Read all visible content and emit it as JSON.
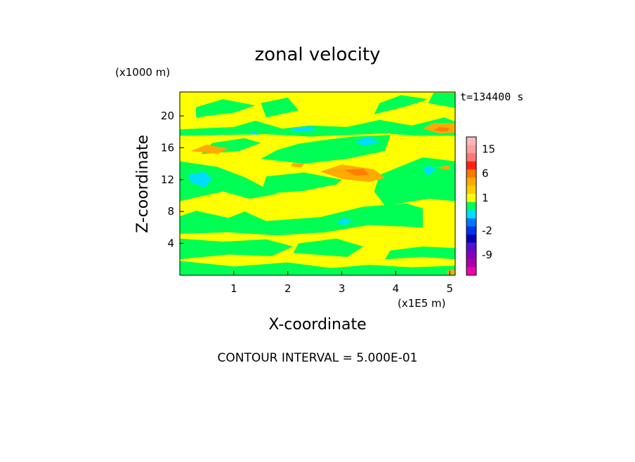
{
  "chart_data": {
    "type": "heatmap",
    "title": "zonal velocity",
    "xlabel": "X-coordinate",
    "ylabel": "Z-coordinate",
    "x_unit": "(x1E5 m)",
    "y_unit": "(x1000 m)",
    "time_label": "t=134400 s",
    "footer": "CONTOUR INTERVAL = 5.000E-01",
    "xlim": [
      0,
      5.1
    ],
    "ylim": [
      0,
      23
    ],
    "x_ticks": [
      {
        "value": 1,
        "label": "1"
      },
      {
        "value": 2,
        "label": "2"
      },
      {
        "value": 3,
        "label": "3"
      },
      {
        "value": 4,
        "label": "4"
      },
      {
        "value": 5,
        "label": "5"
      }
    ],
    "y_ticks": [
      {
        "value": 4,
        "label": "4"
      },
      {
        "value": 8,
        "label": "8"
      },
      {
        "value": 12,
        "label": "12"
      },
      {
        "value": 16,
        "label": "16"
      },
      {
        "value": 20,
        "label": "20"
      }
    ],
    "background_level": {
      "name": "near-zero positive",
      "color": "#ffff00"
    },
    "regions": [
      {
        "level": "weak",
        "color": "#00ff55",
        "points": [
          [
            0,
            0
          ],
          [
            5.1,
            0
          ],
          [
            5.1,
            1.2
          ],
          [
            4.3,
            1.0
          ],
          [
            3.5,
            1.3
          ],
          [
            2.8,
            0.9
          ],
          [
            2.0,
            1.6
          ],
          [
            1.0,
            1.1
          ],
          [
            0,
            1.8
          ]
        ]
      },
      {
        "level": "weak",
        "color": "#00ff55",
        "points": [
          [
            0,
            2.0
          ],
          [
            0.9,
            2.6
          ],
          [
            1.7,
            2.4
          ],
          [
            2.1,
            3.6
          ],
          [
            1.6,
            4.5
          ],
          [
            0.8,
            4.2
          ],
          [
            0,
            4.6
          ]
        ]
      },
      {
        "level": "weak",
        "color": "#00ff55",
        "points": [
          [
            2.1,
            2.8
          ],
          [
            3.1,
            2.3
          ],
          [
            3.4,
            3.6
          ],
          [
            2.9,
            4.6
          ],
          [
            2.2,
            4.0
          ]
        ]
      },
      {
        "level": "weak",
        "color": "#00ff55",
        "points": [
          [
            1.8,
            5.0
          ],
          [
            2.7,
            5.4
          ],
          [
            3.5,
            6.3
          ],
          [
            4.5,
            6.0
          ],
          [
            4.5,
            8.4
          ],
          [
            4.2,
            9.0
          ],
          [
            3.4,
            8.6
          ],
          [
            2.6,
            7.3
          ],
          [
            1.6,
            6.8
          ],
          [
            1.2,
            8.0
          ],
          [
            0.9,
            7.2
          ],
          [
            0.3,
            8.1
          ],
          [
            0,
            7.4
          ],
          [
            0,
            5.2
          ],
          [
            0.9,
            5.4
          ]
        ]
      },
      {
        "level": "weak",
        "color": "#00ff55",
        "points": [
          [
            3.8,
            2.0
          ],
          [
            4.5,
            2.3
          ],
          [
            5.1,
            2.0
          ],
          [
            5.1,
            3.4
          ],
          [
            4.5,
            3.6
          ],
          [
            3.9,
            3.1
          ]
        ]
      },
      {
        "level": "weak",
        "color": "#00ff55",
        "points": [
          [
            3.8,
            8.7
          ],
          [
            4.6,
            9.6
          ],
          [
            5.1,
            9.3
          ],
          [
            5.1,
            14.3
          ],
          [
            4.5,
            14.8
          ],
          [
            3.7,
            12.6
          ],
          [
            3.6,
            10.5
          ]
        ]
      },
      {
        "level": "weak",
        "color": "#00ff55",
        "points": [
          [
            0,
            9.3
          ],
          [
            0.8,
            10.5
          ],
          [
            1.3,
            9.6
          ],
          [
            1.8,
            10.2
          ],
          [
            1.2,
            12.3
          ],
          [
            0.7,
            13.6
          ],
          [
            0,
            14.3
          ]
        ]
      },
      {
        "level": "weak",
        "color": "#00ff55",
        "points": [
          [
            1.5,
            10.2
          ],
          [
            2.3,
            10.6
          ],
          [
            2.9,
            11.4
          ],
          [
            3.0,
            12.0
          ],
          [
            2.3,
            12.9
          ],
          [
            1.6,
            12.4
          ]
        ]
      },
      {
        "level": "weak",
        "color": "#00ff55",
        "points": [
          [
            1.5,
            14.6
          ],
          [
            2.3,
            14.0
          ],
          [
            3.1,
            14.6
          ],
          [
            3.8,
            15.6
          ],
          [
            3.9,
            17.6
          ],
          [
            3.2,
            17.4
          ],
          [
            2.7,
            17.0
          ],
          [
            2.2,
            16.5
          ],
          [
            1.8,
            15.7
          ]
        ]
      },
      {
        "level": "weak",
        "color": "#00ff55",
        "points": [
          [
            0.4,
            15.2
          ],
          [
            1.1,
            15.6
          ],
          [
            1.5,
            16.6
          ],
          [
            1.2,
            17.2
          ],
          [
            0.6,
            16.6
          ]
        ]
      },
      {
        "level": "weak",
        "color": "#00ff55",
        "points": [
          [
            0,
            18.3
          ],
          [
            1.0,
            18.6
          ],
          [
            1.4,
            19.4
          ],
          [
            1.9,
            18.4
          ],
          [
            2.4,
            18.8
          ],
          [
            3.1,
            18.6
          ],
          [
            3.7,
            19.5
          ],
          [
            4.3,
            18.8
          ],
          [
            4.9,
            19.8
          ],
          [
            5.1,
            19.3
          ],
          [
            5.1,
            17.5
          ],
          [
            4.4,
            17.5
          ],
          [
            3.8,
            17.8
          ],
          [
            3.1,
            17.6
          ],
          [
            2.4,
            17.4
          ],
          [
            1.6,
            17.7
          ],
          [
            0.8,
            17.6
          ],
          [
            0,
            17.5
          ]
        ]
      },
      {
        "level": "weak",
        "color": "#00ff55",
        "points": [
          [
            0.3,
            19.8
          ],
          [
            1.0,
            20.4
          ],
          [
            1.4,
            21.3
          ],
          [
            0.8,
            22.1
          ],
          [
            0.3,
            21.1
          ]
        ]
      },
      {
        "level": "weak",
        "color": "#00ff55",
        "points": [
          [
            1.6,
            19.8
          ],
          [
            2.2,
            20.7
          ],
          [
            2.0,
            22.3
          ],
          [
            1.5,
            21.6
          ]
        ]
      },
      {
        "level": "weak",
        "color": "#00ff55",
        "points": [
          [
            3.6,
            20.2
          ],
          [
            4.2,
            21.2
          ],
          [
            4.6,
            22.1
          ],
          [
            4.1,
            22.6
          ],
          [
            3.7,
            21.6
          ]
        ]
      },
      {
        "level": "weak",
        "color": "#00ff55",
        "points": [
          [
            4.6,
            21.6
          ],
          [
            5.1,
            21.0
          ],
          [
            5.1,
            22.9
          ],
          [
            4.7,
            22.9
          ]
        ]
      },
      {
        "level": "positive",
        "color": "#ffaa00",
        "points": [
          [
            2.6,
            13.0
          ],
          [
            3.0,
            12.1
          ],
          [
            3.5,
            11.7
          ],
          [
            3.8,
            12.2
          ],
          [
            3.6,
            13.3
          ],
          [
            3.0,
            13.9
          ]
        ]
      },
      {
        "level": "positive",
        "color": "#ffaa00",
        "points": [
          [
            0.2,
            15.6
          ],
          [
            0.7,
            15.2
          ],
          [
            0.9,
            15.9
          ],
          [
            0.5,
            16.4
          ]
        ]
      },
      {
        "level": "positive",
        "color": "#ffaa00",
        "points": [
          [
            4.5,
            18.4
          ],
          [
            4.8,
            17.8
          ],
          [
            5.1,
            17.9
          ],
          [
            5.1,
            19.1
          ],
          [
            4.7,
            19.1
          ]
        ]
      },
      {
        "level": "positive",
        "color": "#ffaa00",
        "points": [
          [
            4.75,
            13.5
          ],
          [
            5.0,
            13.2
          ],
          [
            5.0,
            13.8
          ]
        ]
      },
      {
        "level": "positive",
        "color": "#ffaa00",
        "points": [
          [
            2.05,
            13.7
          ],
          [
            2.25,
            13.5
          ],
          [
            2.3,
            14.0
          ],
          [
            2.1,
            14.1
          ]
        ]
      },
      {
        "level": "positive",
        "color": "#ffaa00",
        "points": [
          [
            4.95,
            0.1
          ],
          [
            5.1,
            0.1
          ],
          [
            5.1,
            0.7
          ],
          [
            4.95,
            0.6
          ]
        ]
      },
      {
        "level": "stronger positive",
        "color": "#ff7f00",
        "points": [
          [
            3.05,
            13.2
          ],
          [
            3.25,
            12.5
          ],
          [
            3.5,
            12.6
          ],
          [
            3.4,
            13.4
          ]
        ]
      },
      {
        "level": "stronger positive",
        "color": "#ff7f00",
        "points": [
          [
            4.7,
            18.2
          ],
          [
            4.95,
            18.0
          ],
          [
            5.0,
            18.5
          ],
          [
            4.8,
            18.6
          ]
        ]
      },
      {
        "level": "negative",
        "color": "#00ddff",
        "points": [
          [
            0.15,
            12.6
          ],
          [
            0.45,
            13.0
          ],
          [
            0.6,
            12.1
          ],
          [
            0.45,
            11.0
          ],
          [
            0.2,
            11.7
          ]
        ]
      },
      {
        "level": "negative",
        "color": "#00ddff",
        "points": [
          [
            3.25,
            16.8
          ],
          [
            3.5,
            17.4
          ],
          [
            3.7,
            16.7
          ],
          [
            3.4,
            16.2
          ]
        ]
      },
      {
        "level": "negative",
        "color": "#00ddff",
        "points": [
          [
            2.05,
            18.5
          ],
          [
            2.45,
            18.7
          ],
          [
            2.5,
            18.2
          ],
          [
            2.15,
            18.0
          ]
        ]
      },
      {
        "level": "negative",
        "color": "#00ddff",
        "points": [
          [
            2.9,
            6.7
          ],
          [
            3.05,
            7.2
          ],
          [
            3.2,
            6.8
          ],
          [
            3.05,
            6.3
          ]
        ]
      },
      {
        "level": "negative",
        "color": "#00ddff",
        "points": [
          [
            4.5,
            13.3
          ],
          [
            4.6,
            13.8
          ],
          [
            4.75,
            13.3
          ],
          [
            4.6,
            12.5
          ]
        ]
      },
      {
        "level": "negative",
        "color": "#00ddff",
        "points": [
          [
            1.25,
            17.8
          ],
          [
            1.4,
            18.1
          ],
          [
            1.45,
            17.6
          ]
        ]
      }
    ],
    "colorbar": {
      "levels": [
        {
          "value": 15,
          "color": "#ffb8b8"
        },
        {
          "value": 12,
          "color": "#ff9f9f"
        },
        {
          "value": 9,
          "color": "#ff7777"
        },
        {
          "value": 6,
          "color": "#ff2211"
        },
        {
          "value": 3,
          "color": "#ff7700"
        },
        {
          "value": 1.5,
          "color": "#ffaa00"
        },
        {
          "value": 1,
          "color": "#ffcc00"
        },
        {
          "value": 0.5,
          "color": "#ffff00"
        },
        {
          "value": 0,
          "color": "#00ff55"
        },
        {
          "value": -0.5,
          "color": "#00ddff"
        },
        {
          "value": -1,
          "color": "#0077ff"
        },
        {
          "value": -2,
          "color": "#0033ee"
        },
        {
          "value": -3,
          "color": "#0000bb"
        },
        {
          "value": -6,
          "color": "#5511cc"
        },
        {
          "value": -9,
          "color": "#8800bb"
        },
        {
          "value": -12,
          "color": "#aa00aa"
        },
        {
          "value": -15,
          "color": "#ee00aa"
        }
      ],
      "labels": [
        {
          "text": "15",
          "index": 1
        },
        {
          "text": "6",
          "index": 4
        },
        {
          "text": "1",
          "index": 7
        },
        {
          "text": "-2",
          "index": 11
        },
        {
          "text": "-9",
          "index": 14
        }
      ]
    }
  }
}
